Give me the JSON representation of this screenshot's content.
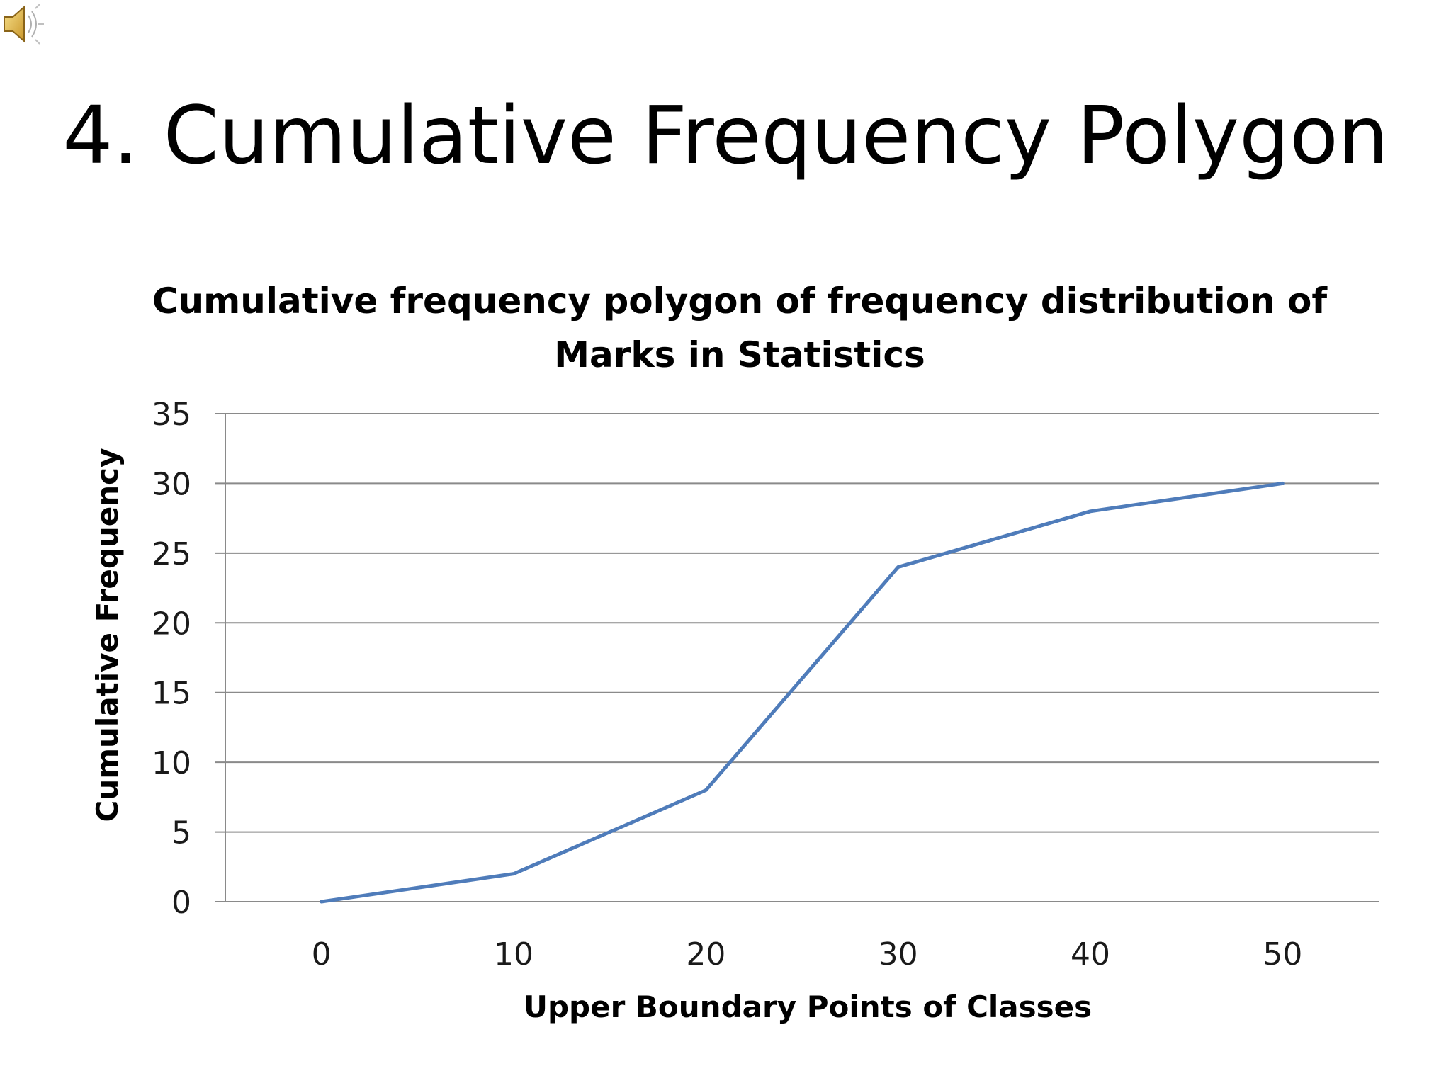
{
  "slide": {
    "title": "4. Cumulative Frequency Polygon",
    "audio_icon": "speaker-icon"
  },
  "colors": {
    "line": "#4f7cba",
    "grid": "#8a8a8a"
  },
  "chart_data": {
    "type": "line",
    "title_lines": [
      "Cumulative frequency polygon of frequency distribution of",
      "Marks in Statistics"
    ],
    "xlabel": "Upper Boundary Points of Classes",
    "ylabel": "Cumulative Frequency",
    "categories": [
      "0",
      "10",
      "20",
      "30",
      "40",
      "50"
    ],
    "series": [
      {
        "values": [
          0,
          2,
          8,
          24,
          28,
          30
        ]
      }
    ],
    "ylim": [
      0,
      35
    ],
    "yticks": [
      "0",
      "5",
      "10",
      "15",
      "20",
      "25",
      "30",
      "35"
    ],
    "grid": true,
    "legend": "none"
  }
}
